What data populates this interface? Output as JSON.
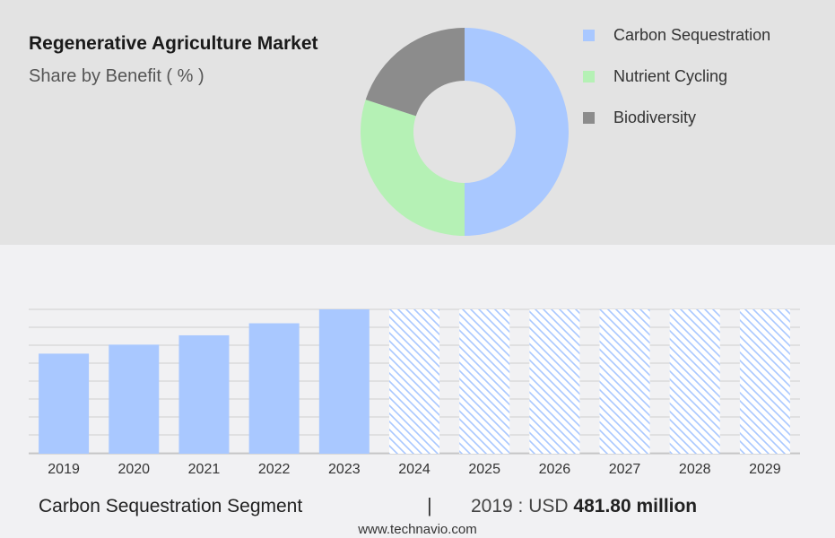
{
  "title": "Regenerative Agriculture Market",
  "subtitle": "Share by Benefit ( % )",
  "legend": [
    {
      "label": "Carbon Sequestration",
      "color": "#a9c8ff"
    },
    {
      "label": "Nutrient Cycling",
      "color": "#b5f1b5"
    },
    {
      "label": "Biodiversity",
      "color": "#8c8c8c"
    }
  ],
  "chart_data": [
    {
      "type": "pie",
      "variant": "donut",
      "slices": [
        {
          "label": "Carbon Sequestration",
          "value": 50,
          "color": "#a9c8ff"
        },
        {
          "label": "Nutrient Cycling",
          "value": 30,
          "color": "#b5f1b5"
        },
        {
          "label": "Biodiversity",
          "value": 20,
          "color": "#8c8c8c"
        }
      ],
      "legend_position": "right"
    },
    {
      "type": "bar",
      "categories": [
        "2019",
        "2020",
        "2021",
        "2022",
        "2023",
        "2024",
        "2025",
        "2026",
        "2027",
        "2028",
        "2029"
      ],
      "values": [
        481.8,
        525,
        570,
        628,
        695,
        null,
        null,
        null,
        null,
        null,
        null
      ],
      "forecast_categories": [
        "2024",
        "2025",
        "2026",
        "2027",
        "2028",
        "2029"
      ],
      "bar_color": "#a9c8ff",
      "forecast_pattern": "diagonal-hatch",
      "ylim": [
        0,
        695
      ],
      "grid": true
    }
  ],
  "footer": {
    "segment": "Carbon Sequestration Segment",
    "separator": "|",
    "year_label": "2019 : USD",
    "amount": "481.80 million"
  },
  "source": "www.technavio.com"
}
